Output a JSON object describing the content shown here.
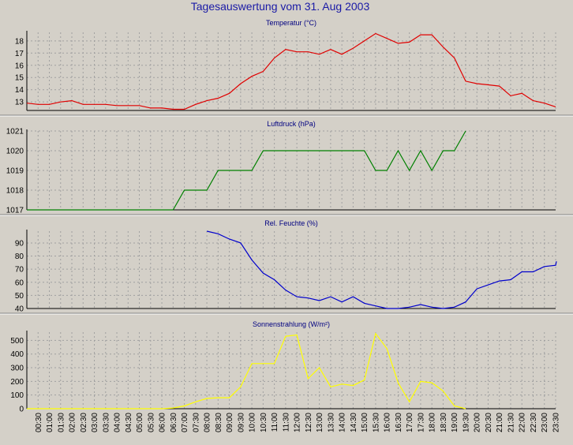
{
  "title": "Tagesauswertung vom 31. Aug 2003",
  "x_tick_labels": [
    "00:30",
    "01:00",
    "01:30",
    "02:00",
    "02:30",
    "03:00",
    "03:30",
    "04:00",
    "04:30",
    "05:00",
    "05:30",
    "06:00",
    "06:30",
    "07:00",
    "07:30",
    "08:00",
    "08:30",
    "09:00",
    "09:30",
    "10:00",
    "10:30",
    "11:00",
    "11:30",
    "12:00",
    "12:30",
    "13:00",
    "13:30",
    "14:00",
    "14:30",
    "15:00",
    "15:30",
    "16:00",
    "16:30",
    "17:00",
    "17:30",
    "18:00",
    "18:30",
    "19:00",
    "19:30",
    "20:00",
    "20:30",
    "21:00",
    "21:30",
    "22:00",
    "22:30",
    "23:00",
    "23:30"
  ],
  "chart_data": [
    {
      "type": "line",
      "title": "Temperatur (°C)",
      "color": "#e00000",
      "ylim": [
        12.3,
        18.7
      ],
      "yticks": [
        13,
        14,
        15,
        16,
        17,
        18
      ],
      "grid": true,
      "x": [
        "00:00",
        "00:30",
        "01:00",
        "01:30",
        "02:00",
        "02:30",
        "03:00",
        "03:30",
        "04:00",
        "04:30",
        "05:00",
        "05:30",
        "06:00",
        "06:30",
        "07:00",
        "07:30",
        "08:00",
        "08:30",
        "09:00",
        "09:30",
        "10:00",
        "10:30",
        "11:00",
        "11:30",
        "12:00",
        "12:30",
        "13:00",
        "13:30",
        "14:00",
        "14:30",
        "15:00",
        "15:30",
        "16:00",
        "16:30",
        "17:00",
        "17:30",
        "18:00",
        "18:30",
        "19:00",
        "19:30",
        "20:00",
        "20:30",
        "21:00",
        "21:30",
        "22:00",
        "22:30",
        "23:00",
        "23:30"
      ],
      "values": [
        12.9,
        12.8,
        12.8,
        13.0,
        13.1,
        12.8,
        12.8,
        12.8,
        12.7,
        12.7,
        12.7,
        12.5,
        12.5,
        12.4,
        12.4,
        12.8,
        13.1,
        13.3,
        13.7,
        14.5,
        15.1,
        15.5,
        16.6,
        17.3,
        17.1,
        17.1,
        16.9,
        17.3,
        16.9,
        17.4,
        18.0,
        18.6,
        18.2,
        17.8,
        17.9,
        18.5,
        18.5,
        17.5,
        16.6,
        14.7,
        14.5,
        14.4,
        14.3,
        13.5,
        13.7,
        13.1,
        12.9,
        12.6
      ]
    },
    {
      "type": "line",
      "title": "Luftdruck (hPa)",
      "color": "#008000",
      "ylim": [
        1017,
        1021
      ],
      "yticks": [
        1017,
        1018,
        1019,
        1020,
        1021
      ],
      "grid": true,
      "x": [
        "00:00",
        "00:30",
        "01:00",
        "01:30",
        "02:00",
        "02:30",
        "03:00",
        "03:30",
        "04:00",
        "04:30",
        "05:00",
        "05:30",
        "06:00",
        "06:30",
        "07:00",
        "07:30",
        "08:00",
        "08:30",
        "09:00",
        "09:30",
        "10:00",
        "10:30",
        "11:00",
        "11:30",
        "12:00",
        "12:30",
        "13:00",
        "13:30",
        "14:00",
        "14:30",
        "15:00",
        "15:30",
        "16:00",
        "16:30",
        "17:00",
        "17:30",
        "18:00",
        "18:30",
        "19:00",
        "19:30"
      ],
      "values": [
        1017,
        1017,
        1017,
        1017,
        1017,
        1017,
        1017,
        1017,
        1017,
        1017,
        1017,
        1017,
        1017,
        1017,
        1018,
        1018,
        1018,
        1019,
        1019,
        1019,
        1019,
        1020,
        1020,
        1020,
        1020,
        1020,
        1020,
        1020,
        1020,
        1020,
        1020,
        1019,
        1019,
        1020,
        1019,
        1020,
        1019,
        1020,
        1020,
        1021
      ]
    },
    {
      "type": "line",
      "title": "Rel. Feuchte (%)",
      "color": "#0000cc",
      "ylim": [
        40,
        99
      ],
      "yticks": [
        40,
        50,
        60,
        70,
        80,
        90
      ],
      "grid": true,
      "x": [
        "08:00",
        "08:30",
        "09:00",
        "09:30",
        "10:00",
        "10:30",
        "11:00",
        "11:30",
        "12:00",
        "12:30",
        "13:00",
        "13:30",
        "14:00",
        "14:30",
        "15:00",
        "15:30",
        "16:00",
        "16:30",
        "17:00",
        "17:30",
        "18:00",
        "18:30",
        "19:00",
        "19:30",
        "20:00",
        "20:30",
        "21:00",
        "21:30",
        "22:00",
        "22:30",
        "23:00",
        "23:30",
        "24:00"
      ],
      "values": [
        99,
        97,
        93,
        90,
        77,
        67,
        62,
        54,
        49,
        48,
        46,
        49,
        45,
        49,
        44,
        42,
        40,
        40,
        41,
        43,
        41,
        40,
        41,
        45,
        55,
        58,
        61,
        62,
        68,
        68,
        72,
        73,
        76
      ]
    },
    {
      "type": "line",
      "title": "Sonnenstrahlung (W/m²)",
      "color": "#ffff00",
      "ylim": [
        0,
        560
      ],
      "yticks": [
        0,
        100,
        200,
        300,
        400,
        500
      ],
      "grid": true,
      "x": [
        "00:00",
        "00:30",
        "01:00",
        "01:30",
        "02:00",
        "02:30",
        "03:00",
        "03:30",
        "04:00",
        "04:30",
        "05:00",
        "05:30",
        "06:00",
        "06:30",
        "07:00",
        "07:30",
        "08:00",
        "08:30",
        "09:00",
        "09:30",
        "10:00",
        "10:30",
        "11:00",
        "11:30",
        "12:00",
        "12:30",
        "13:00",
        "13:30",
        "14:00",
        "14:30",
        "15:00",
        "15:30",
        "16:00",
        "16:30",
        "17:00",
        "17:30",
        "18:00",
        "18:30",
        "19:00",
        "19:30"
      ],
      "values": [
        0,
        0,
        0,
        0,
        0,
        0,
        0,
        0,
        0,
        0,
        0,
        0,
        0,
        5,
        20,
        50,
        75,
        80,
        80,
        160,
        330,
        330,
        330,
        530,
        540,
        220,
        300,
        160,
        180,
        170,
        210,
        550,
        440,
        190,
        50,
        200,
        190,
        130,
        20,
        0
      ]
    }
  ]
}
